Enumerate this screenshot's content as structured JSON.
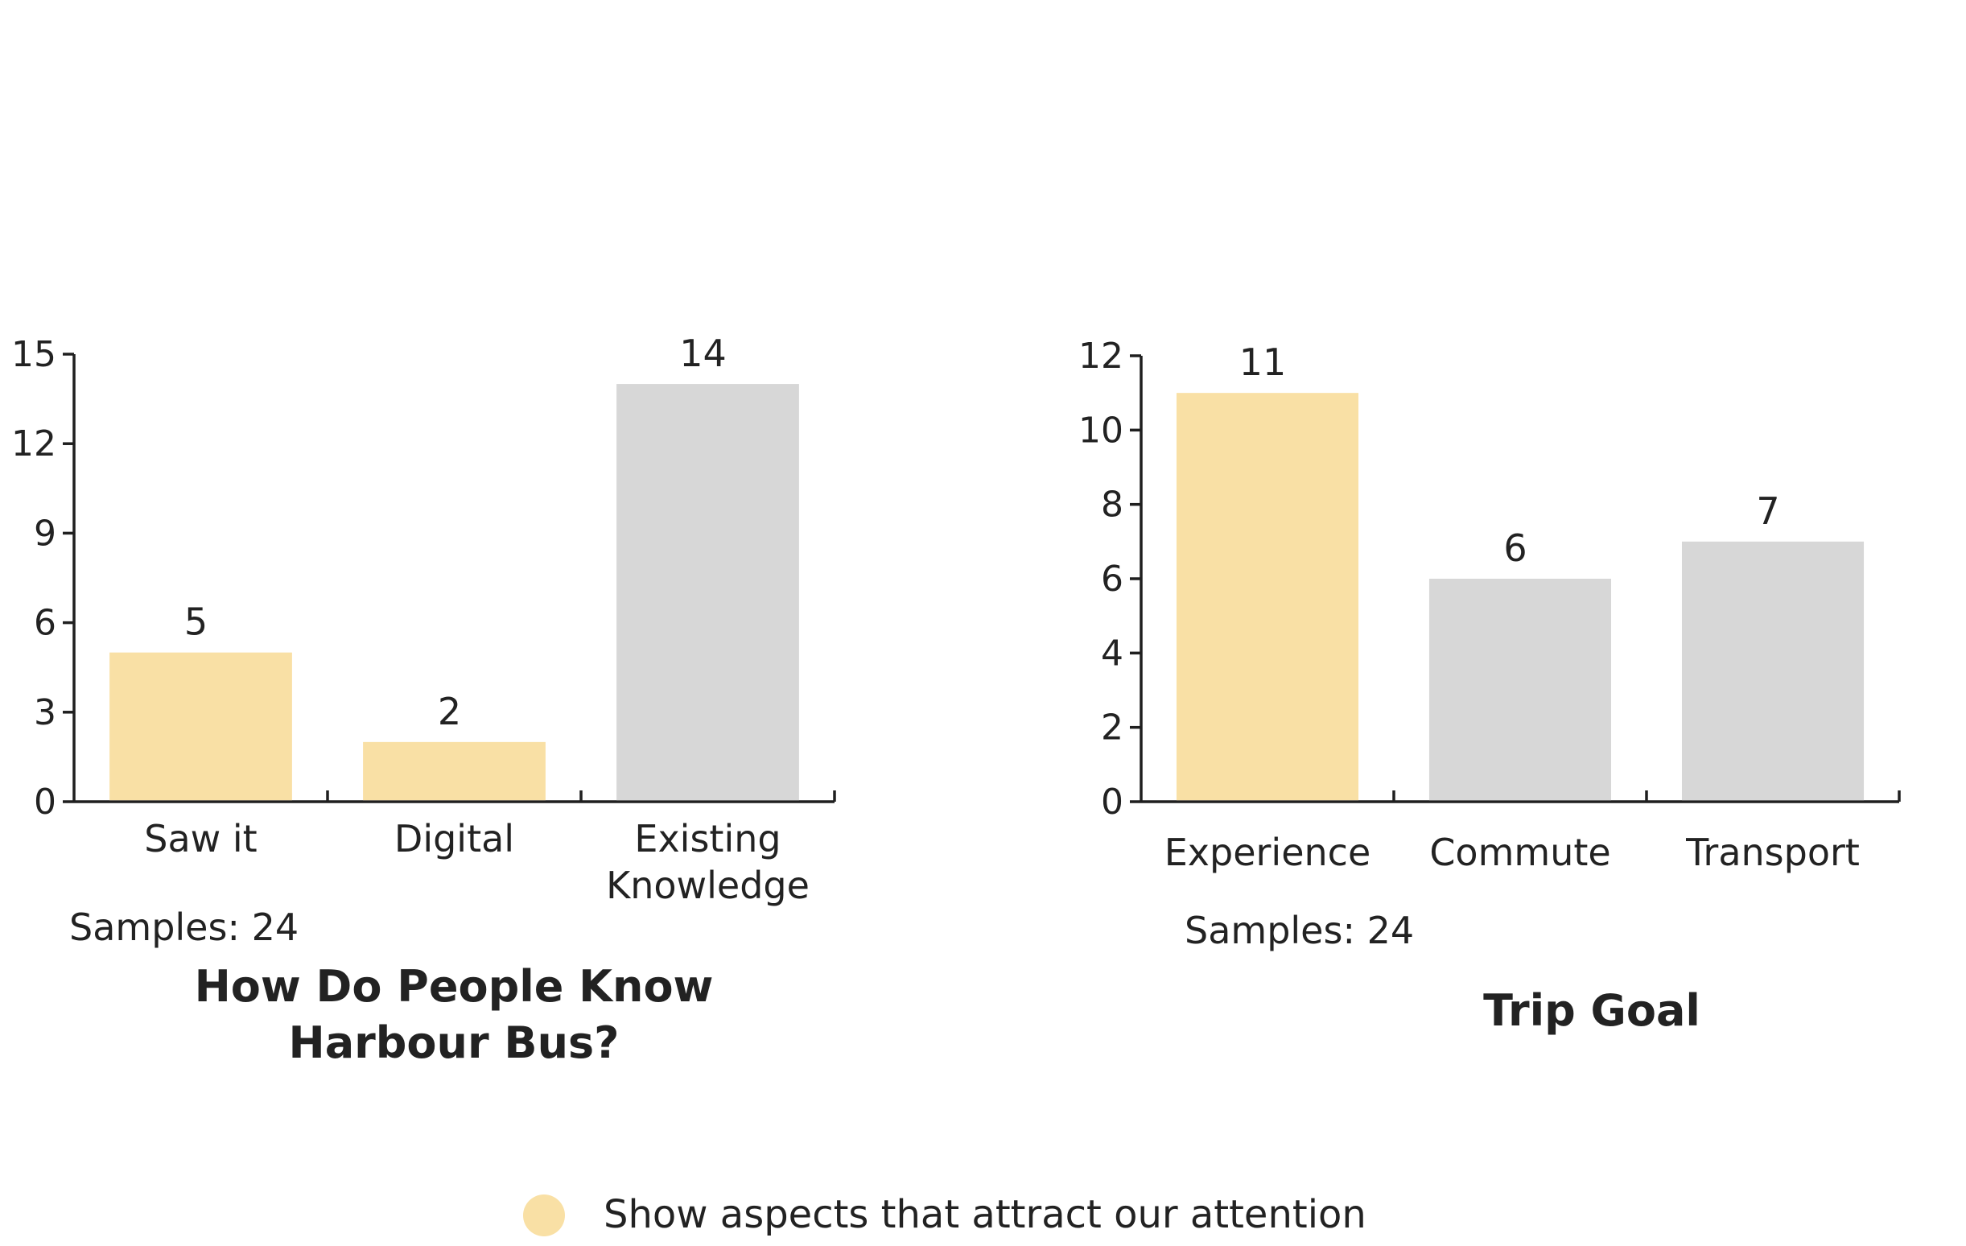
{
  "colors": {
    "highlight": "#F9E0A5",
    "neutral": "#D7D7D7",
    "axis": "#1F1F1F",
    "text": "#222222"
  },
  "chart_data": [
    {
      "type": "bar",
      "title_lines": [
        "How Do People Know",
        "Harbour Bus?"
      ],
      "samples_text": "Samples: 24",
      "categories": [
        [
          "Saw it"
        ],
        [
          "Digital"
        ],
        [
          "Existing",
          "Knowledge"
        ]
      ],
      "values": [
        5,
        2,
        14
      ],
      "value_labels": [
        "5",
        "2",
        "14"
      ],
      "highlighted": [
        true,
        true,
        false
      ],
      "ylim": [
        0,
        15
      ],
      "yticks": [
        "0",
        "3",
        "6",
        "9",
        "12",
        "15"
      ],
      "xlabel": "",
      "ylabel": ""
    },
    {
      "type": "bar",
      "title_lines": [
        "Trip Goal"
      ],
      "samples_text": "Samples: 24",
      "categories": [
        [
          "Experience"
        ],
        [
          "Commute"
        ],
        [
          "Transport"
        ]
      ],
      "values": [
        11,
        6,
        7
      ],
      "value_labels": [
        "11",
        "6",
        "7"
      ],
      "highlighted": [
        true,
        false,
        false
      ],
      "ylim": [
        0,
        12
      ],
      "yticks": [
        "0",
        "2",
        "4",
        "6",
        "8",
        "10",
        "12"
      ],
      "xlabel": "",
      "ylabel": ""
    }
  ],
  "legend": {
    "text": "Show aspects that attract our attention"
  }
}
